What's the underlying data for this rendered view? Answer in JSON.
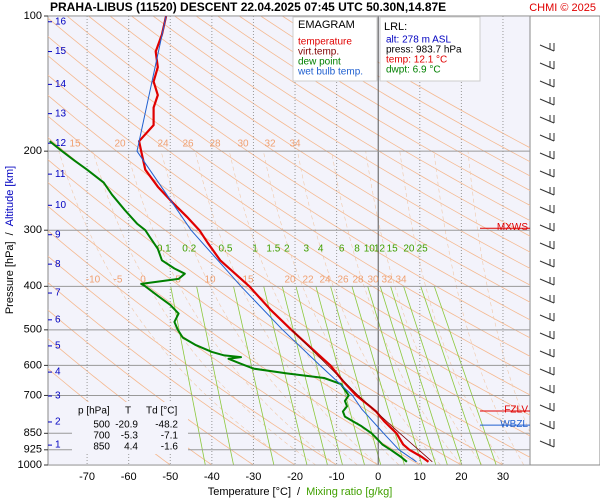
{
  "chart_data": {
    "type": "emagram",
    "title": "PRAHA-LIBUS (11520)   DESCENT   22.04.2025 07:45 UTC   50.30N,14.87E",
    "credit": "CHMI © 2025",
    "x_label": "Temperature [°C]",
    "x_label_sep": "/",
    "x_label2": "Mixing ratio [g/kg]",
    "y_label": "Pressure [hPa]",
    "y_label_sep": "/",
    "y_label2": "Altitude [km]",
    "log_y": true,
    "xlim": [
      -79.4,
      36.5
    ],
    "xticks": [
      -70,
      -60,
      -50,
      -40,
      -30,
      -20,
      -10,
      0,
      10,
      20,
      30
    ],
    "ylim": [
      1000,
      100
    ],
    "yticks": [
      100,
      200,
      300,
      400,
      500,
      600,
      700,
      850,
      925,
      1000
    ],
    "altitude_ticks": [
      {
        "value": 903,
        "label": "1"
      },
      {
        "value": 802,
        "label": "2"
      },
      {
        "value": 702,
        "label": "3"
      },
      {
        "value": 621,
        "label": "4"
      },
      {
        "value": 543,
        "label": "5"
      },
      {
        "value": 475,
        "label": "6"
      },
      {
        "value": 414,
        "label": "7"
      },
      {
        "value": 357,
        "label": "8"
      },
      {
        "value": 307,
        "label": "9"
      },
      {
        "value": 264,
        "label": "10"
      },
      {
        "value": 225,
        "label": "11"
      },
      {
        "value": 192,
        "label": "12"
      },
      {
        "value": 165,
        "label": "13"
      },
      {
        "value": 142,
        "label": "14"
      },
      {
        "value": 120,
        "label": "15"
      },
      {
        "value": 103,
        "label": "16"
      }
    ],
    "mixing_ratios": [
      0.1,
      0.2,
      0.5,
      1,
      1.5,
      2,
      3,
      4,
      6,
      8,
      10,
      12,
      15,
      20,
      25
    ],
    "adiabat_labels_upper": [
      15,
      20,
      24,
      26,
      28,
      30,
      32,
      34
    ],
    "adiabat_labels_lower": [
      -10,
      -5,
      0,
      5,
      10,
      15,
      20,
      22,
      24,
      26,
      28,
      30,
      32,
      34
    ],
    "legend_title": "EMAGRAM",
    "series": [
      {
        "name": "temperature",
        "color": "#e00000",
        "pressure": [
          983.7,
          960,
          925,
          900,
          850,
          800,
          760,
          740,
          700,
          650,
          600,
          550,
          500,
          450,
          400,
          350,
          320,
          300,
          280,
          260,
          240,
          220,
          200,
          190,
          175,
          160,
          150,
          140,
          130,
          120,
          110,
          100
        ],
        "values": [
          12.1,
          10.5,
          7.5,
          6,
          4.4,
          1.5,
          -0.5,
          -2,
          -5.3,
          -8.5,
          -11.5,
          -16,
          -20.9,
          -26,
          -31,
          -38,
          -41,
          -43,
          -46,
          -49.5,
          -53,
          -56,
          -57,
          -57.5,
          -54,
          -54,
          -53,
          -54,
          -53,
          -53.5,
          -52,
          -51
        ]
      },
      {
        "name": "virt.temp.",
        "color": "#800000",
        "pressure": [
          983.7,
          850,
          700,
          500
        ],
        "values": [
          13,
          5.2,
          -4.8,
          -20.8
        ]
      },
      {
        "name": "dew point",
        "color": "#008000",
        "pressure": [
          983.7,
          960,
          925,
          900,
          870,
          850,
          820,
          800,
          780,
          760,
          740,
          720,
          700,
          680,
          660,
          640,
          625,
          610,
          595,
          580,
          575,
          570,
          560,
          540,
          520,
          500,
          480,
          460,
          440,
          420,
          400,
          395,
          385,
          375,
          365,
          350,
          330,
          310,
          300,
          290,
          270,
          250,
          235,
          220,
          210,
          200,
          190
        ],
        "values": [
          6.9,
          5.5,
          3,
          1,
          -0.5,
          -1.6,
          -4,
          -6,
          -8,
          -8.5,
          -7.5,
          -8,
          -7.1,
          -8,
          -9,
          -13,
          -22,
          -30,
          -33,
          -36,
          -33,
          -37,
          -40,
          -44,
          -47,
          -48.2,
          -49,
          -48,
          -50,
          -53,
          -56,
          -57,
          -48,
          -46.5,
          -49,
          -52,
          -53,
          -55,
          -56,
          -58,
          -61,
          -64,
          -66,
          -70,
          -73,
          -76,
          -79
        ]
      },
      {
        "name": "wet bulb temp.",
        "color": "#2060d0",
        "pressure": [
          983.7,
          925,
          850,
          750,
          700,
          600,
          500,
          400,
          300,
          200,
          100
        ],
        "values": [
          9.2,
          5,
          1.3,
          -4,
          -6.2,
          -14,
          -23,
          -33,
          -45,
          -58,
          -51
        ]
      }
    ],
    "lrl": {
      "title": "LRL:",
      "lines": [
        {
          "text": "alt: 278 m ASL",
          "color": "#0000c0"
        },
        {
          "text": "press: 983.7 hPa",
          "color": "#000000"
        },
        {
          "text": "temp: 12.1 °C",
          "color": "#e00000"
        },
        {
          "text": "dwpt: 6.9 °C",
          "color": "#008000"
        }
      ]
    },
    "levels": [
      {
        "name": "MXWS",
        "pressure": 297,
        "color": "#e00000"
      },
      {
        "name": "FZLV",
        "pressure": 758,
        "color": "#e00000"
      },
      {
        "name": "WBZL",
        "pressure": 815,
        "color": "#2060d0"
      }
    ],
    "table": {
      "header": [
        "p [hPa]",
        "T",
        "Td [°C]"
      ],
      "rows": [
        [
          "500",
          "-20.9",
          "-48.2"
        ],
        [
          "700",
          "-5.3",
          "-7.1"
        ],
        [
          "850",
          "4.4",
          "-1.6"
        ]
      ]
    }
  }
}
